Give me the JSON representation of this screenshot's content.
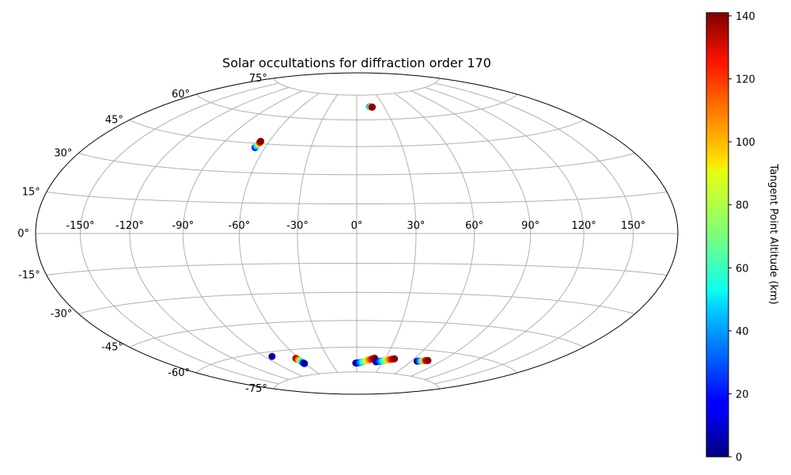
{
  "chart_data": {
    "type": "scatter",
    "projection": "hammer",
    "title": "Solar occultations for diffraction order 170",
    "grid": true,
    "lon_ticks": [
      "-150°",
      "-120°",
      "-90°",
      "-60°",
      "-30°",
      "0°",
      "30°",
      "60°",
      "90°",
      "120°",
      "150°"
    ],
    "lon_values": [
      -150,
      -120,
      -90,
      -60,
      -30,
      0,
      30,
      60,
      90,
      120,
      150
    ],
    "lat_ticks": [
      "-75°",
      "-60°",
      "-45°",
      "-30°",
      "-15°",
      "0°",
      "15°",
      "30°",
      "45°",
      "60°",
      "75°"
    ],
    "lat_values": [
      -75,
      -60,
      -45,
      -30,
      -15,
      0,
      15,
      30,
      45,
      60,
      75
    ],
    "lat_limits": [
      -75,
      75
    ],
    "colorbar": {
      "label": "Tangent Point Altitude (km)",
      "range": [
        0,
        141
      ],
      "ticks": [
        "0",
        "20",
        "40",
        "60",
        "80",
        "100",
        "120",
        "140"
      ],
      "tick_values": [
        0,
        20,
        40,
        60,
        80,
        100,
        120,
        140
      ],
      "colormap": "jet"
    },
    "series": [
      {
        "lon": [
          14.5,
          15.0,
          15.5,
          16.0,
          16.5,
          17.0
        ],
        "lat": [
          67.8,
          67.7,
          67.6,
          67.6,
          67.5,
          67.5
        ],
        "alt": [
          30,
          45,
          60,
          80,
          130,
          140
        ]
      },
      {
        "lon": [
          -66.5,
          -66.3,
          -66.2,
          -66.0,
          -65.9,
          -65.8
        ],
        "lat": [
          42.8,
          43.5,
          44.2,
          45.0,
          45.6,
          46.2
        ],
        "alt": [
          20,
          40,
          60,
          90,
          125,
          140
        ]
      },
      {
        "lon": [
          -83.0
        ],
        "lat": [
          -62.5
        ],
        "alt": [
          5
        ]
      },
      {
        "lon": [
          -63.0,
          -62.8,
          -62.5,
          -62.2,
          -61.9,
          -61.6,
          -61.3,
          -61.0,
          -60.8
        ],
        "lat": [
          -65.0,
          -65.5,
          -66.0,
          -66.4,
          -66.8,
          -67.2,
          -67.6,
          -68.0,
          -68.3
        ],
        "alt": [
          140,
          125,
          110,
          95,
          75,
          60,
          40,
          20,
          5
        ]
      },
      {
        "lon": [
          -1.0,
          1.0,
          3.0,
          5.0,
          7.0,
          9.0,
          11.0,
          13.0,
          15.0,
          17.0,
          19.0
        ],
        "lat": [
          -69.5,
          -69.4,
          -69.2,
          -69.0,
          -68.7,
          -68.4,
          -68.0,
          -67.6,
          -67.2,
          -66.8,
          -66.4
        ],
        "alt": [
          0,
          10,
          25,
          40,
          55,
          70,
          85,
          100,
          115,
          130,
          140
        ]
      },
      {
        "lon": [
          22.0,
          24.0,
          26.0,
          28.0,
          30.0,
          32.0,
          34.0,
          36.0,
          38.0,
          40.0
        ],
        "lat": [
          -68.5,
          -68.3,
          -68.1,
          -67.9,
          -67.7,
          -67.4,
          -67.1,
          -66.8,
          -66.5,
          -66.2
        ],
        "alt": [
          0,
          12,
          28,
          45,
          60,
          78,
          95,
          112,
          128,
          140
        ]
      },
      {
        "lon": [
          66.0,
          68.0,
          70.0,
          72.0,
          74.0,
          76.0
        ],
        "lat": [
          -66.5,
          -66.3,
          -66.1,
          -65.9,
          -65.7,
          -65.5
        ],
        "alt": [
          5,
          30,
          60,
          95,
          125,
          140
        ]
      }
    ]
  }
}
